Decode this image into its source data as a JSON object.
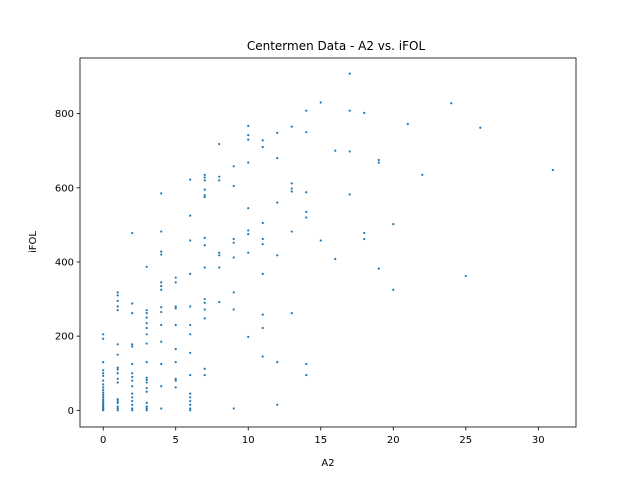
{
  "chart_data": {
    "type": "scatter",
    "title": "Centermen Data - A2 vs. iFOL",
    "xlabel": "A2",
    "ylabel": "iFOL",
    "xlim": [
      -1.6,
      32.6
    ],
    "ylim": [
      -45,
      950
    ],
    "xticks": [
      0,
      5,
      10,
      15,
      20,
      25,
      30
    ],
    "yticks": [
      0,
      200,
      400,
      600,
      800
    ],
    "grid": false,
    "color": "#1f77b4",
    "points": [
      [
        0,
        205
      ],
      [
        0,
        193
      ],
      [
        0,
        130
      ],
      [
        0,
        108
      ],
      [
        0,
        100
      ],
      [
        0,
        93
      ],
      [
        0,
        80
      ],
      [
        0,
        70
      ],
      [
        0,
        62
      ],
      [
        0,
        55
      ],
      [
        0,
        48
      ],
      [
        0,
        42
      ],
      [
        0,
        36
      ],
      [
        0,
        30
      ],
      [
        0,
        25
      ],
      [
        0,
        20
      ],
      [
        0,
        16
      ],
      [
        0,
        12
      ],
      [
        0,
        8
      ],
      [
        0,
        5
      ],
      [
        0,
        2
      ],
      [
        0,
        0
      ],
      [
        1,
        318
      ],
      [
        1,
        310
      ],
      [
        1,
        295
      ],
      [
        1,
        280
      ],
      [
        1,
        270
      ],
      [
        1,
        178
      ],
      [
        1,
        150
      ],
      [
        1,
        115
      ],
      [
        1,
        110
      ],
      [
        1,
        100
      ],
      [
        1,
        85
      ],
      [
        1,
        75
      ],
      [
        1,
        30
      ],
      [
        1,
        25
      ],
      [
        1,
        20
      ],
      [
        1,
        10
      ],
      [
        1,
        5
      ],
      [
        1,
        0
      ],
      [
        2,
        478
      ],
      [
        2,
        288
      ],
      [
        2,
        262
      ],
      [
        2,
        178
      ],
      [
        2,
        172
      ],
      [
        2,
        125
      ],
      [
        2,
        100
      ],
      [
        2,
        90
      ],
      [
        2,
        80
      ],
      [
        2,
        65
      ],
      [
        2,
        45
      ],
      [
        2,
        35
      ],
      [
        2,
        25
      ],
      [
        2,
        15
      ],
      [
        2,
        5
      ],
      [
        2,
        0
      ],
      [
        3,
        387
      ],
      [
        3,
        270
      ],
      [
        3,
        262
      ],
      [
        3,
        250
      ],
      [
        3,
        235
      ],
      [
        3,
        222
      ],
      [
        3,
        205
      ],
      [
        3,
        180
      ],
      [
        3,
        130
      ],
      [
        3,
        88
      ],
      [
        3,
        82
      ],
      [
        3,
        75
      ],
      [
        3,
        60
      ],
      [
        3,
        50
      ],
      [
        3,
        20
      ],
      [
        3,
        10
      ],
      [
        3,
        5
      ],
      [
        3,
        0
      ],
      [
        4,
        585
      ],
      [
        4,
        482
      ],
      [
        4,
        428
      ],
      [
        4,
        420
      ],
      [
        4,
        345
      ],
      [
        4,
        335
      ],
      [
        4,
        325
      ],
      [
        4,
        278
      ],
      [
        4,
        265
      ],
      [
        4,
        230
      ],
      [
        4,
        185
      ],
      [
        4,
        125
      ],
      [
        4,
        65
      ],
      [
        4,
        5
      ],
      [
        5,
        358
      ],
      [
        5,
        345
      ],
      [
        5,
        280
      ],
      [
        5,
        275
      ],
      [
        5,
        230
      ],
      [
        5,
        165
      ],
      [
        5,
        130
      ],
      [
        5,
        85
      ],
      [
        5,
        80
      ],
      [
        5,
        62
      ],
      [
        6,
        622
      ],
      [
        6,
        525
      ],
      [
        6,
        458
      ],
      [
        6,
        368
      ],
      [
        6,
        280
      ],
      [
        6,
        230
      ],
      [
        6,
        205
      ],
      [
        6,
        155
      ],
      [
        6,
        95
      ],
      [
        6,
        45
      ],
      [
        6,
        35
      ],
      [
        6,
        25
      ],
      [
        6,
        15
      ],
      [
        6,
        5
      ],
      [
        6,
        0
      ],
      [
        7,
        635
      ],
      [
        7,
        628
      ],
      [
        7,
        620
      ],
      [
        7,
        595
      ],
      [
        7,
        580
      ],
      [
        7,
        575
      ],
      [
        7,
        465
      ],
      [
        7,
        445
      ],
      [
        7,
        385
      ],
      [
        7,
        300
      ],
      [
        7,
        290
      ],
      [
        7,
        272
      ],
      [
        7,
        248
      ],
      [
        7,
        112
      ],
      [
        7,
        95
      ],
      [
        8,
        718
      ],
      [
        8,
        630
      ],
      [
        8,
        620
      ],
      [
        8,
        425
      ],
      [
        8,
        418
      ],
      [
        8,
        385
      ],
      [
        8,
        292
      ],
      [
        9,
        658
      ],
      [
        9,
        605
      ],
      [
        9,
        462
      ],
      [
        9,
        452
      ],
      [
        9,
        412
      ],
      [
        9,
        318
      ],
      [
        9,
        272
      ],
      [
        9,
        5
      ],
      [
        10,
        767
      ],
      [
        10,
        742
      ],
      [
        10,
        730
      ],
      [
        10,
        668
      ],
      [
        10,
        545
      ],
      [
        10,
        485
      ],
      [
        10,
        475
      ],
      [
        10,
        425
      ],
      [
        10,
        198
      ],
      [
        11,
        728
      ],
      [
        11,
        710
      ],
      [
        11,
        505
      ],
      [
        11,
        462
      ],
      [
        11,
        448
      ],
      [
        11,
        368
      ],
      [
        11,
        258
      ],
      [
        11,
        222
      ],
      [
        11,
        145
      ],
      [
        12,
        748
      ],
      [
        12,
        680
      ],
      [
        12,
        560
      ],
      [
        12,
        418
      ],
      [
        12,
        130
      ],
      [
        12,
        15
      ],
      [
        13,
        765
      ],
      [
        13,
        612
      ],
      [
        13,
        598
      ],
      [
        13,
        590
      ],
      [
        13,
        482
      ],
      [
        13,
        262
      ],
      [
        14,
        808
      ],
      [
        14,
        750
      ],
      [
        14,
        588
      ],
      [
        14,
        535
      ],
      [
        14,
        520
      ],
      [
        14,
        125
      ],
      [
        14,
        95
      ],
      [
        15,
        830
      ],
      [
        15,
        458
      ],
      [
        16,
        700
      ],
      [
        16,
        408
      ],
      [
        17,
        908
      ],
      [
        17,
        808
      ],
      [
        17,
        698
      ],
      [
        17,
        582
      ],
      [
        18,
        802
      ],
      [
        18,
        478
      ],
      [
        18,
        462
      ],
      [
        19,
        675
      ],
      [
        19,
        668
      ],
      [
        19,
        382
      ],
      [
        20,
        502
      ],
      [
        20,
        325
      ],
      [
        21,
        772
      ],
      [
        22,
        635
      ],
      [
        24,
        828
      ],
      [
        25,
        362
      ],
      [
        26,
        762
      ],
      [
        31,
        648
      ]
    ]
  }
}
